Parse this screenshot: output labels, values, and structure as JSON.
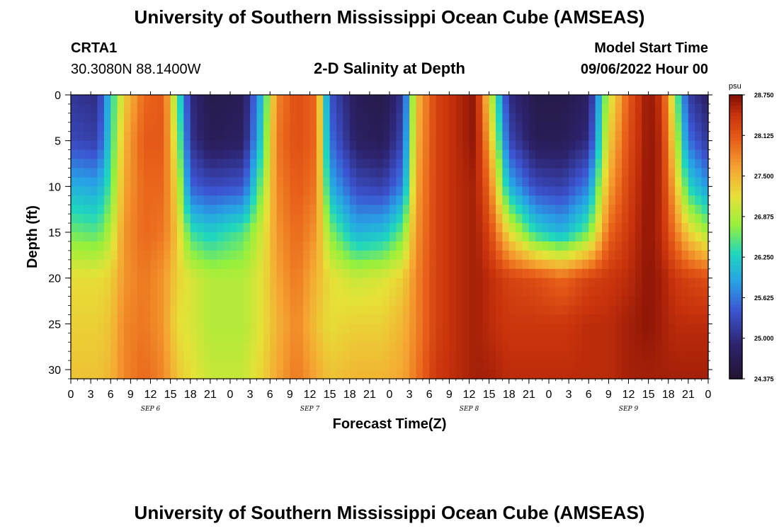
{
  "title": "University of Southern Mississippi Ocean Cube (AMSEAS)",
  "bottom_title": "University of Southern Mississippi Ocean Cube (AMSEAS)",
  "station": {
    "name": "CRTA1",
    "coords": "30.3080N  88.1400W"
  },
  "model_start": {
    "label": "Model Start Time",
    "value": "09/06/2022 Hour 00"
  },
  "chart_data": {
    "type": "heatmap",
    "title": "2-D Salinity at Depth",
    "xlabel": "Forecast Time(Z)",
    "ylabel": "Depth (ft)",
    "x_range_hours": [
      0,
      96
    ],
    "x_ticks": [
      {
        "h": 0,
        "label": "0"
      },
      {
        "h": 3,
        "label": "3"
      },
      {
        "h": 6,
        "label": "6"
      },
      {
        "h": 9,
        "label": "9"
      },
      {
        "h": 12,
        "label": "12"
      },
      {
        "h": 15,
        "label": "15"
      },
      {
        "h": 18,
        "label": "18"
      },
      {
        "h": 21,
        "label": "21"
      },
      {
        "h": 24,
        "label": "0"
      },
      {
        "h": 27,
        "label": "3"
      },
      {
        "h": 30,
        "label": "6"
      },
      {
        "h": 33,
        "label": "9"
      },
      {
        "h": 36,
        "label": "12"
      },
      {
        "h": 39,
        "label": "15"
      },
      {
        "h": 42,
        "label": "18"
      },
      {
        "h": 45,
        "label": "21"
      },
      {
        "h": 48,
        "label": "0"
      },
      {
        "h": 51,
        "label": "3"
      },
      {
        "h": 54,
        "label": "6"
      },
      {
        "h": 57,
        "label": "9"
      },
      {
        "h": 60,
        "label": "12"
      },
      {
        "h": 63,
        "label": "15"
      },
      {
        "h": 66,
        "label": "18"
      },
      {
        "h": 69,
        "label": "21"
      },
      {
        "h": 72,
        "label": "0"
      },
      {
        "h": 75,
        "label": "3"
      },
      {
        "h": 78,
        "label": "6"
      },
      {
        "h": 81,
        "label": "9"
      },
      {
        "h": 84,
        "label": "12"
      },
      {
        "h": 87,
        "label": "15"
      },
      {
        "h": 90,
        "label": "18"
      },
      {
        "h": 93,
        "label": "21"
      },
      {
        "h": 96,
        "label": "0"
      }
    ],
    "date_labels": [
      {
        "h": 12,
        "label": "SEP 6"
      },
      {
        "h": 36,
        "label": "SEP 7"
      },
      {
        "h": 60,
        "label": "SEP 8"
      },
      {
        "h": 84,
        "label": "SEP 9"
      }
    ],
    "y_range_ft": [
      0,
      31
    ],
    "y_ticks": [
      0,
      5,
      10,
      15,
      20,
      25,
      30
    ],
    "colorbar": {
      "unit": "psu",
      "min": 24.375,
      "max": 28.75,
      "labels": [
        "28.750",
        "28.125",
        "27.500",
        "26.875",
        "26.250",
        "25.625",
        "25.000",
        "24.375"
      ]
    },
    "salinity_psu": {
      "depth_ft": [
        0,
        5,
        10,
        15,
        20,
        25,
        31
      ],
      "columns": [
        {
          "h": 0,
          "v": [
            25.1,
            25.3,
            26.0,
            26.6,
            27.2,
            27.3,
            27.4
          ]
        },
        {
          "h": 4,
          "v": [
            25.0,
            25.2,
            25.9,
            26.5,
            27.2,
            27.3,
            27.4
          ]
        },
        {
          "h": 6,
          "v": [
            26.2,
            26.3,
            26.5,
            26.9,
            27.3,
            27.4,
            27.5
          ]
        },
        {
          "h": 8,
          "v": [
            27.3,
            27.5,
            27.6,
            27.7,
            27.7,
            27.8,
            27.8
          ]
        },
        {
          "h": 11,
          "v": [
            28.0,
            28.1,
            28.0,
            28.0,
            27.9,
            27.9,
            28.0
          ]
        },
        {
          "h": 14,
          "v": [
            28.1,
            28.1,
            28.0,
            27.9,
            27.7,
            27.7,
            27.8
          ]
        },
        {
          "h": 16,
          "v": [
            26.6,
            26.9,
            27.2,
            27.4,
            27.3,
            27.2,
            27.4
          ]
        },
        {
          "h": 18,
          "v": [
            25.0,
            25.1,
            25.5,
            26.4,
            27.1,
            27.1,
            27.2
          ]
        },
        {
          "h": 21,
          "v": [
            24.6,
            24.7,
            25.3,
            26.2,
            26.9,
            26.9,
            27.0
          ]
        },
        {
          "h": 26,
          "v": [
            24.7,
            24.8,
            25.4,
            26.5,
            26.9,
            26.9,
            27.0
          ]
        },
        {
          "h": 29,
          "v": [
            26.2,
            26.4,
            26.8,
            27.1,
            27.2,
            27.2,
            27.3
          ]
        },
        {
          "h": 31,
          "v": [
            27.8,
            27.9,
            27.8,
            27.7,
            27.6,
            27.5,
            27.6
          ]
        },
        {
          "h": 34,
          "v": [
            28.2,
            28.2,
            28.1,
            28.0,
            27.9,
            27.8,
            27.9
          ]
        },
        {
          "h": 37,
          "v": [
            28.0,
            28.0,
            27.9,
            27.7,
            27.5,
            27.4,
            27.6
          ]
        },
        {
          "h": 39,
          "v": [
            25.4,
            25.6,
            26.0,
            26.7,
            27.2,
            27.2,
            27.4
          ]
        },
        {
          "h": 43,
          "v": [
            24.7,
            24.8,
            25.3,
            26.0,
            27.0,
            27.3,
            27.5
          ]
        },
        {
          "h": 47,
          "v": [
            24.6,
            24.7,
            25.2,
            26.1,
            27.1,
            27.3,
            27.5
          ]
        },
        {
          "h": 50,
          "v": [
            25.1,
            25.3,
            25.7,
            26.6,
            27.3,
            27.5,
            27.6
          ]
        },
        {
          "h": 52,
          "v": [
            27.4,
            27.5,
            27.6,
            27.7,
            27.8,
            27.8,
            27.9
          ]
        },
        {
          "h": 55,
          "v": [
            28.3,
            28.3,
            28.3,
            28.3,
            28.3,
            28.3,
            28.4
          ]
        },
        {
          "h": 58,
          "v": [
            28.5,
            28.5,
            28.5,
            28.5,
            28.5,
            28.5,
            28.5
          ]
        },
        {
          "h": 61,
          "v": [
            28.7,
            28.7,
            28.6,
            28.6,
            28.6,
            28.6,
            28.6
          ]
        },
        {
          "h": 63,
          "v": [
            27.2,
            27.6,
            28.0,
            28.3,
            28.5,
            28.5,
            28.6
          ]
        },
        {
          "h": 66,
          "v": [
            25.0,
            25.3,
            26.0,
            27.2,
            28.3,
            28.4,
            28.5
          ]
        },
        {
          "h": 70,
          "v": [
            24.6,
            24.7,
            25.3,
            26.3,
            28.2,
            28.4,
            28.5
          ]
        },
        {
          "h": 74,
          "v": [
            24.6,
            24.7,
            25.2,
            26.0,
            28.0,
            28.4,
            28.5
          ]
        },
        {
          "h": 78,
          "v": [
            24.8,
            25.0,
            25.7,
            26.6,
            28.3,
            28.5,
            28.5
          ]
        },
        {
          "h": 81,
          "v": [
            27.0,
            27.3,
            27.6,
            28.0,
            28.4,
            28.5,
            28.5
          ]
        },
        {
          "h": 84,
          "v": [
            28.1,
            28.2,
            28.3,
            28.4,
            28.5,
            28.6,
            28.6
          ]
        },
        {
          "h": 87,
          "v": [
            28.7,
            28.7,
            28.7,
            28.7,
            28.7,
            28.7,
            28.6
          ]
        },
        {
          "h": 89,
          "v": [
            28.4,
            28.5,
            28.5,
            28.5,
            28.6,
            28.6,
            28.6
          ]
        },
        {
          "h": 91,
          "v": [
            26.8,
            27.1,
            27.5,
            27.9,
            28.4,
            28.5,
            28.6
          ]
        },
        {
          "h": 93,
          "v": [
            25.2,
            25.6,
            26.3,
            27.3,
            28.3,
            28.5,
            28.6
          ]
        },
        {
          "h": 96,
          "v": [
            24.8,
            25.1,
            25.8,
            26.8,
            28.2,
            28.5,
            28.6
          ]
        }
      ]
    }
  }
}
